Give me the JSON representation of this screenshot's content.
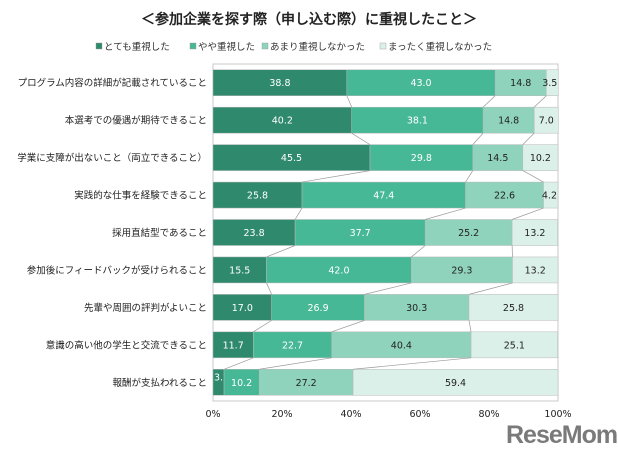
{
  "chart_data": {
    "type": "bar",
    "orientation": "horizontal",
    "stacked": true,
    "title": "＜参加企業を探す際（申し込む際）に重視したこと＞",
    "categories": [
      "プログラム内容の詳細が記載されていること",
      "本選考での優遇が期待できること",
      "学業に支障が出ないこと（両立できること）",
      "実践的な仕事を経験できること",
      "採用直結型であること",
      "参加後にフィードバックが受けられること",
      "先輩や周囲の評判がよいこと",
      "意識の高い他の学生と交流できること",
      "報酬が支払われること"
    ],
    "series": [
      {
        "name": "とても重視した",
        "color": "#2f8a6d",
        "values": [
          38.8,
          40.2,
          45.5,
          25.8,
          23.8,
          15.5,
          17.0,
          11.7,
          3.2
        ]
      },
      {
        "name": "やや重視した",
        "color": "#47b895",
        "values": [
          43.0,
          38.1,
          29.8,
          47.4,
          37.7,
          42.0,
          26.9,
          22.7,
          10.2
        ]
      },
      {
        "name": "あまり重視しなかった",
        "color": "#8fd3bd",
        "values": [
          14.8,
          14.8,
          14.5,
          22.6,
          25.2,
          29.3,
          30.3,
          40.4,
          27.2
        ]
      },
      {
        "name": "まったく重視しなかった",
        "color": "#dcf0ea",
        "values": [
          3.5,
          7.0,
          10.2,
          4.2,
          13.2,
          13.2,
          25.8,
          25.1,
          59.4
        ]
      }
    ],
    "xlim": [
      0,
      100
    ],
    "xticks": [
      "0%",
      "20%",
      "40%",
      "60%",
      "80%",
      "100%"
    ],
    "legend_position": "top",
    "grid": false
  },
  "watermark": "ReseMom"
}
